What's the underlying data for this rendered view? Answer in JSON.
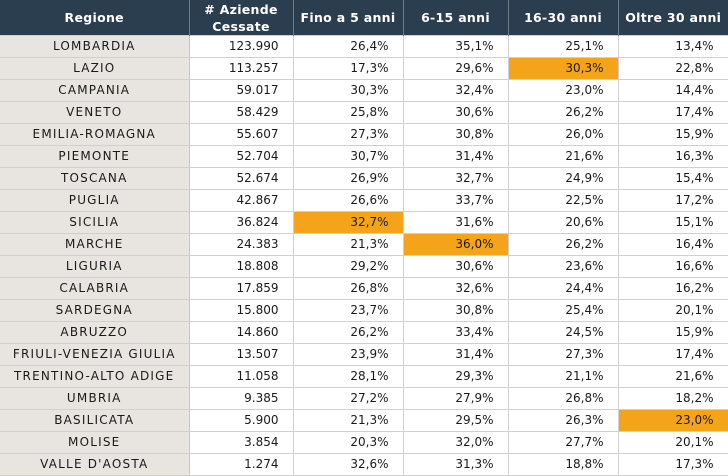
{
  "header": {
    "regione": "Regione",
    "aziende_line1": "# Aziende",
    "aziende_line2": "Cessate",
    "fino5": "Fino a 5 anni",
    "anni6_15": "6-15 anni",
    "anni16_30": "16-30 anni",
    "oltre30": "Oltre 30 anni"
  },
  "colors": {
    "header_bg": "#2b3e50",
    "region_bg": "#e8e5e0",
    "highlight": "#f5a31a"
  },
  "rows": [
    {
      "regione": "LOMBARDIA",
      "aziende": "123.990",
      "fino5": "26,4%",
      "anni6_15": "35,1%",
      "anni16_30": "25,1%",
      "oltre30": "13,4%",
      "highlight": ""
    },
    {
      "regione": "LAZIO",
      "aziende": "113.257",
      "fino5": "17,3%",
      "anni6_15": "29,6%",
      "anni16_30": "30,3%",
      "oltre30": "22,8%",
      "highlight": "anni16_30"
    },
    {
      "regione": "CAMPANIA",
      "aziende": "59.017",
      "fino5": "30,3%",
      "anni6_15": "32,4%",
      "anni16_30": "23,0%",
      "oltre30": "14,4%",
      "highlight": ""
    },
    {
      "regione": "VENETO",
      "aziende": "58.429",
      "fino5": "25,8%",
      "anni6_15": "30,6%",
      "anni16_30": "26,2%",
      "oltre30": "17,4%",
      "highlight": ""
    },
    {
      "regione": "EMILIA-ROMAGNA",
      "aziende": "55.607",
      "fino5": "27,3%",
      "anni6_15": "30,8%",
      "anni16_30": "26,0%",
      "oltre30": "15,9%",
      "highlight": ""
    },
    {
      "regione": "PIEMONTE",
      "aziende": "52.704",
      "fino5": "30,7%",
      "anni6_15": "31,4%",
      "anni16_30": "21,6%",
      "oltre30": "16,3%",
      "highlight": ""
    },
    {
      "regione": "TOSCANA",
      "aziende": "52.674",
      "fino5": "26,9%",
      "anni6_15": "32,7%",
      "anni16_30": "24,9%",
      "oltre30": "15,4%",
      "highlight": ""
    },
    {
      "regione": "PUGLIA",
      "aziende": "42.867",
      "fino5": "26,6%",
      "anni6_15": "33,7%",
      "anni16_30": "22,5%",
      "oltre30": "17,2%",
      "highlight": ""
    },
    {
      "regione": "SICILIA",
      "aziende": "36.824",
      "fino5": "32,7%",
      "anni6_15": "31,6%",
      "anni16_30": "20,6%",
      "oltre30": "15,1%",
      "highlight": "fino5"
    },
    {
      "regione": "MARCHE",
      "aziende": "24.383",
      "fino5": "21,3%",
      "anni6_15": "36,0%",
      "anni16_30": "26,2%",
      "oltre30": "16,4%",
      "highlight": "anni6_15"
    },
    {
      "regione": "LIGURIA",
      "aziende": "18.808",
      "fino5": "29,2%",
      "anni6_15": "30,6%",
      "anni16_30": "23,6%",
      "oltre30": "16,6%",
      "highlight": ""
    },
    {
      "regione": "CALABRIA",
      "aziende": "17.859",
      "fino5": "26,8%",
      "anni6_15": "32,6%",
      "anni16_30": "24,4%",
      "oltre30": "16,2%",
      "highlight": ""
    },
    {
      "regione": "SARDEGNA",
      "aziende": "15.800",
      "fino5": "23,7%",
      "anni6_15": "30,8%",
      "anni16_30": "25,4%",
      "oltre30": "20,1%",
      "highlight": ""
    },
    {
      "regione": "ABRUZZO",
      "aziende": "14.860",
      "fino5": "26,2%",
      "anni6_15": "33,4%",
      "anni16_30": "24,5%",
      "oltre30": "15,9%",
      "highlight": ""
    },
    {
      "regione": "FRIULI-VENEZIA GIULIA",
      "aziende": "13.507",
      "fino5": "23,9%",
      "anni6_15": "31,4%",
      "anni16_30": "27,3%",
      "oltre30": "17,4%",
      "highlight": ""
    },
    {
      "regione": "TRENTINO-ALTO ADIGE",
      "aziende": "11.058",
      "fino5": "28,1%",
      "anni6_15": "29,3%",
      "anni16_30": "21,1%",
      "oltre30": "21,6%",
      "highlight": ""
    },
    {
      "regione": "UMBRIA",
      "aziende": "9.385",
      "fino5": "27,2%",
      "anni6_15": "27,9%",
      "anni16_30": "26,8%",
      "oltre30": "18,2%",
      "highlight": ""
    },
    {
      "regione": "BASILICATA",
      "aziende": "5.900",
      "fino5": "21,3%",
      "anni6_15": "29,5%",
      "anni16_30": "26,3%",
      "oltre30": "23,0%",
      "highlight": "oltre30"
    },
    {
      "regione": "MOLISE",
      "aziende": "3.854",
      "fino5": "20,3%",
      "anni6_15": "32,0%",
      "anni16_30": "27,7%",
      "oltre30": "20,1%",
      "highlight": ""
    },
    {
      "regione": "VALLE D'AOSTA",
      "aziende": "1.274",
      "fino5": "32,6%",
      "anni6_15": "31,3%",
      "anni16_30": "18,8%",
      "oltre30": "17,3%",
      "highlight": ""
    }
  ]
}
